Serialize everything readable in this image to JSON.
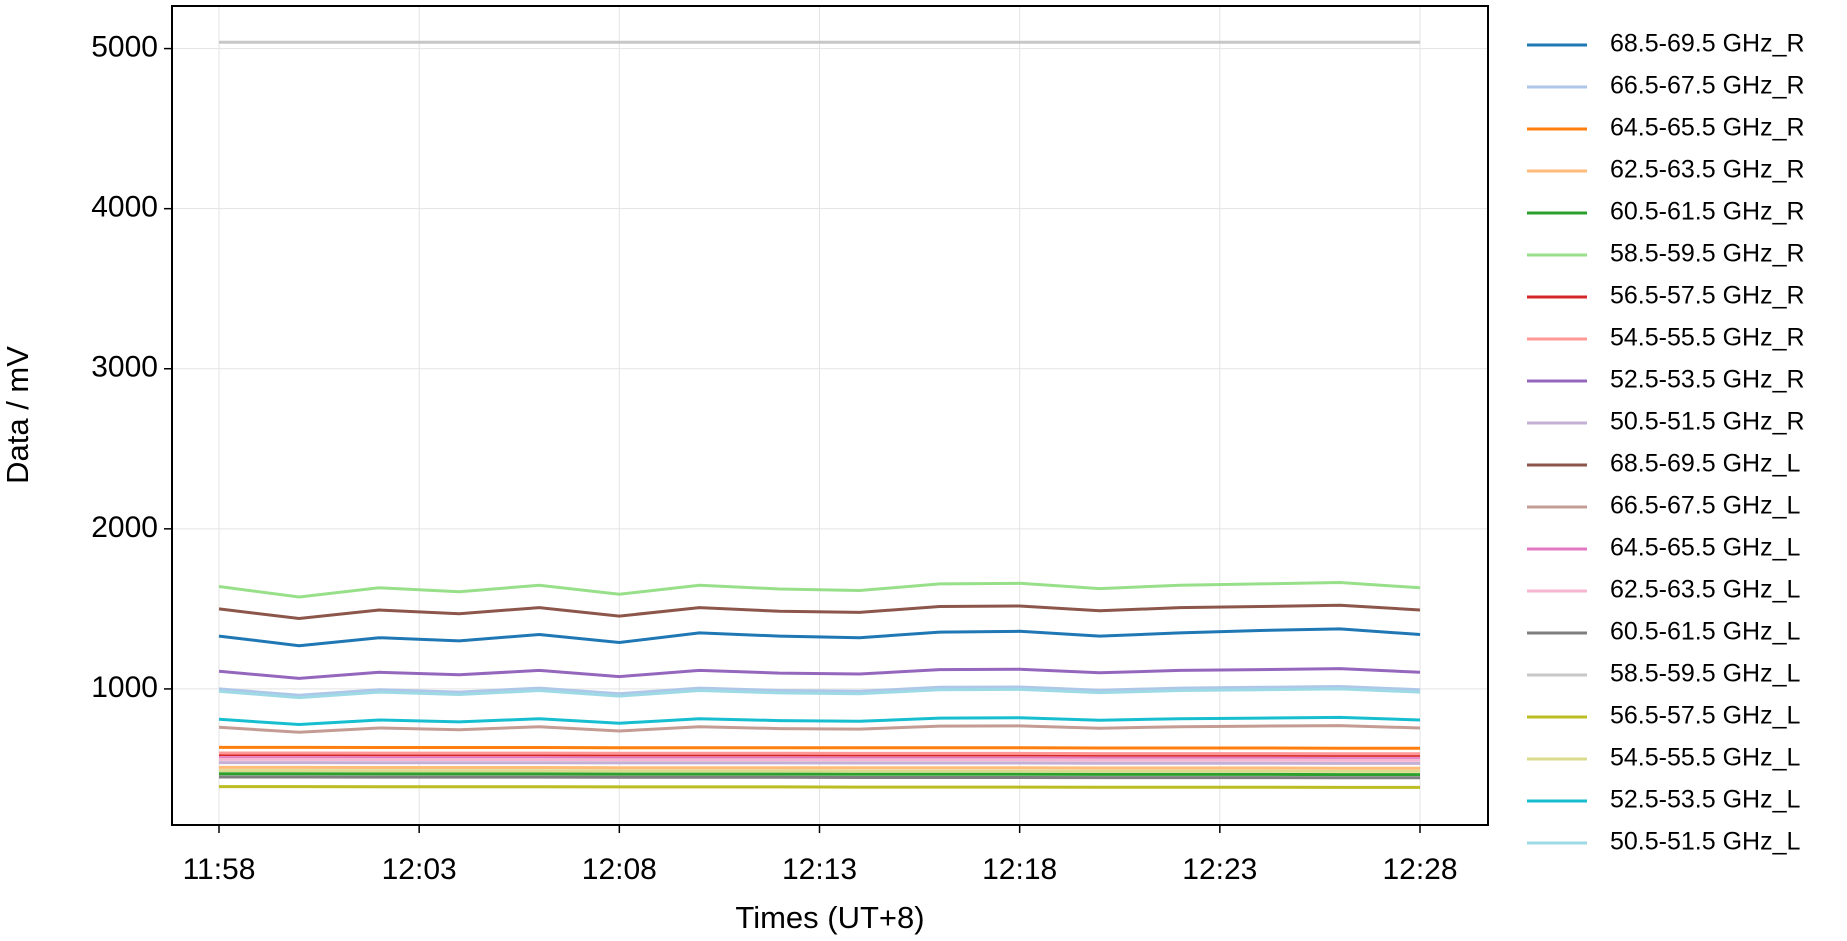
{
  "chart_data": {
    "type": "line",
    "x_label": "Times (UT+8)",
    "y_label": "Data / mV",
    "x": [
      "11:58",
      "12:00",
      "12:02",
      "12:04",
      "12:06",
      "12:08",
      "12:10",
      "12:12",
      "12:14",
      "12:16",
      "12:18",
      "12:20",
      "12:22",
      "12:24",
      "12:26",
      "12:28"
    ],
    "xticks": [
      "11:58",
      "12:03",
      "12:08",
      "12:13",
      "12:18",
      "12:23",
      "12:28"
    ],
    "ylim": [
      150,
      5266
    ],
    "yticks": [
      1000,
      2000,
      3000,
      4000,
      5000
    ],
    "grid": true,
    "legend": "outside right",
    "series": [
      {
        "name": "68.5-69.5 GHz_R",
        "color": "#1f77b4",
        "values": [
          1330,
          1270,
          1320,
          1300,
          1340,
          1290,
          1350,
          1330,
          1320,
          1355,
          1360,
          1330,
          1350,
          1365,
          1375,
          1340
        ]
      },
      {
        "name": "66.5-67.5 GHz_R",
        "color": "#aec7e8",
        "values": [
          1000,
          960,
          995,
          980,
          1005,
          970,
          1005,
          990,
          985,
          1010,
          1012,
          992,
          1005,
          1010,
          1015,
          995
        ]
      },
      {
        "name": "64.5-65.5 GHz_R",
        "color": "#ff7f0e",
        "values": [
          635,
          635,
          634,
          634,
          634,
          633,
          633,
          633,
          632,
          632,
          632,
          631,
          631,
          631,
          630,
          630
        ]
      },
      {
        "name": "62.5-63.5 GHz_R",
        "color": "#ffbb78",
        "values": [
          510,
          510,
          509,
          509,
          509,
          508,
          508,
          508,
          507,
          507,
          507,
          506,
          506,
          506,
          505,
          505
        ]
      },
      {
        "name": "60.5-61.5 GHz_R",
        "color": "#2ca02c",
        "values": [
          470,
          470,
          469,
          469,
          469,
          468,
          468,
          468,
          467,
          467,
          467,
          466,
          466,
          466,
          465,
          465
        ]
      },
      {
        "name": "58.5-59.5 GHz_R",
        "color": "#98df8a",
        "values": [
          1640,
          1574,
          1632,
          1607,
          1648,
          1591,
          1648,
          1624,
          1615,
          1656,
          1660,
          1627,
          1648,
          1656,
          1665,
          1632
        ]
      },
      {
        "name": "56.5-57.5 GHz_R",
        "color": "#d62728",
        "values": [
          590,
          590,
          589,
          589,
          589,
          588,
          588,
          588,
          587,
          587,
          587,
          586,
          586,
          586,
          585,
          585
        ]
      },
      {
        "name": "54.5-55.5 GHz_R",
        "color": "#ff9896",
        "values": [
          600,
          600,
          599,
          599,
          599,
          598,
          598,
          598,
          597,
          597,
          597,
          596,
          596,
          596,
          595,
          595
        ]
      },
      {
        "name": "52.5-53.5 GHz_R",
        "color": "#9467bd",
        "values": [
          1110,
          1066,
          1104,
          1088,
          1116,
          1077,
          1116,
          1099,
          1093,
          1121,
          1123,
          1101,
          1116,
          1121,
          1127,
          1104
        ]
      },
      {
        "name": "50.5-51.5 GHz_R",
        "color": "#c5b0d5",
        "values": [
          540,
          540,
          539,
          539,
          539,
          538,
          538,
          538,
          537,
          537,
          537,
          536,
          536,
          536,
          535,
          535
        ]
      },
      {
        "name": "68.5-69.5 GHz_L",
        "color": "#8c564b",
        "values": [
          1500,
          1440,
          1493,
          1470,
          1508,
          1455,
          1508,
          1485,
          1478,
          1515,
          1518,
          1488,
          1508,
          1515,
          1523,
          1493
        ]
      },
      {
        "name": "66.5-67.5 GHz_L",
        "color": "#c49c94",
        "values": [
          760,
          730,
          756,
          745,
          764,
          737,
          764,
          752,
          749,
          768,
          769,
          754,
          764,
          768,
          771,
          756
        ]
      },
      {
        "name": "64.5-65.5 GHz_L",
        "color": "#e377c2",
        "values": [
          570,
          570,
          569,
          569,
          569,
          568,
          568,
          568,
          567,
          567,
          567,
          566,
          566,
          566,
          565,
          565
        ]
      },
      {
        "name": "62.5-63.5 GHz_L",
        "color": "#f7b6d2",
        "values": [
          560,
          560,
          559,
          559,
          559,
          558,
          558,
          558,
          557,
          557,
          557,
          556,
          556,
          556,
          555,
          555
        ]
      },
      {
        "name": "60.5-61.5 GHz_L",
        "color": "#7f7f7f",
        "values": [
          450,
          450,
          449,
          449,
          449,
          448,
          448,
          448,
          447,
          447,
          447,
          446,
          446,
          446,
          445,
          445
        ]
      },
      {
        "name": "58.5-59.5 GHz_L",
        "color": "#c7c7c7",
        "values": [
          5040,
          5040,
          5040,
          5040,
          5040,
          5040,
          5040,
          5040,
          5040,
          5040,
          5040,
          5040,
          5040,
          5040,
          5040,
          5040
        ]
      },
      {
        "name": "56.5-57.5 GHz_L",
        "color": "#bcbd22",
        "values": [
          390,
          390,
          389,
          389,
          389,
          388,
          388,
          388,
          387,
          387,
          387,
          386,
          386,
          386,
          385,
          385
        ]
      },
      {
        "name": "54.5-55.5 GHz_L",
        "color": "#dbdb8d",
        "values": [
          490,
          490,
          489,
          489,
          489,
          488,
          488,
          488,
          487,
          487,
          487,
          486,
          486,
          486,
          485,
          485
        ]
      },
      {
        "name": "52.5-53.5 GHz_L",
        "color": "#17becf",
        "values": [
          810,
          778,
          806,
          794,
          814,
          786,
          814,
          802,
          798,
          818,
          820,
          804,
          814,
          818,
          822,
          806
        ]
      },
      {
        "name": "50.5-51.5 GHz_L",
        "color": "#9edae5",
        "values": [
          985,
          946,
          980,
          965,
          990,
          955,
          990,
          975,
          970,
          995,
          997,
          977,
          990,
          995,
          1000,
          980
        ]
      }
    ]
  }
}
